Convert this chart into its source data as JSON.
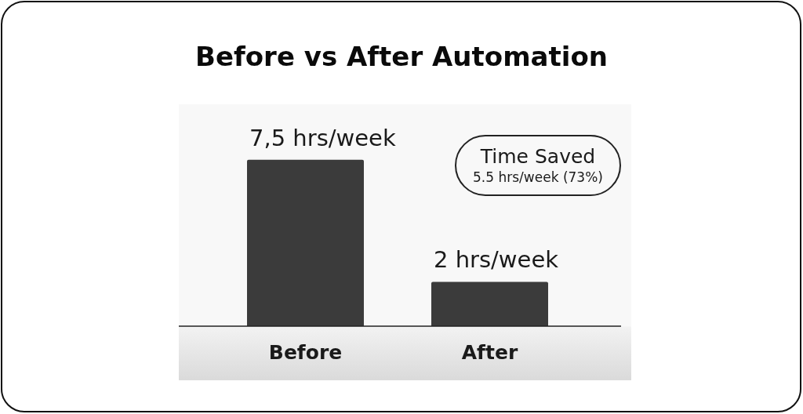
{
  "chart_data": {
    "type": "bar",
    "title": "Before vs After Automation",
    "categories": [
      "Before",
      "After"
    ],
    "values": [
      7.5,
      2
    ],
    "color": "#3b3b3b",
    "value_labels": [
      "7,5 hrs/week",
      "2 hrs/week"
    ],
    "ylim": [
      0,
      10
    ],
    "tick_labels": "x",
    "annotations": [
      "Time Saved",
      "5.5 hrs/week (73%)"
    ]
  }
}
